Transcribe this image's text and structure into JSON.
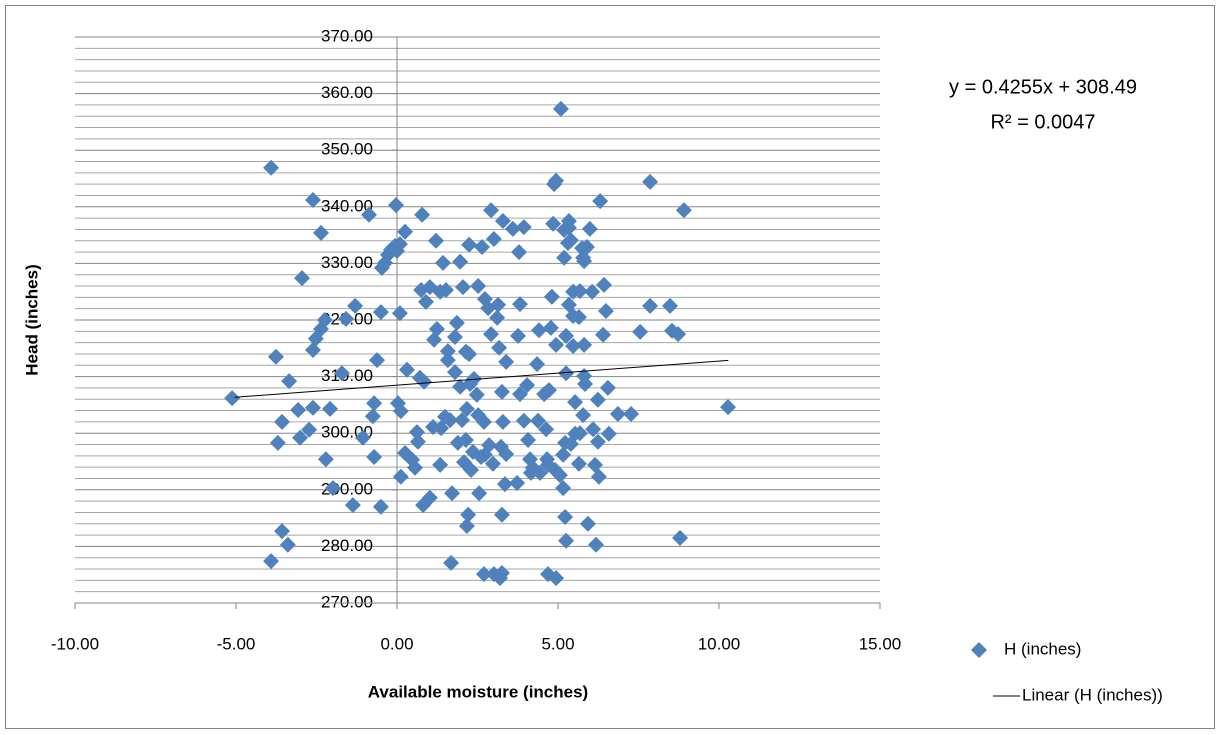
{
  "chart_data": {
    "type": "scatter",
    "xlabel": "Available moisture (inches)",
    "ylabel": "Head (inches)",
    "annotations": [
      "y = 0.4255x + 308.49",
      "R² = 0.0047"
    ],
    "xlim": [
      -10,
      15
    ],
    "xticks": [
      {
        "value": -10,
        "label": "-10.00"
      },
      {
        "value": -5,
        "label": "-5.00"
      },
      {
        "value": 0,
        "label": "0.00"
      },
      {
        "value": 5,
        "label": "5.00"
      },
      {
        "value": 10,
        "label": "10.00"
      },
      {
        "value": 15,
        "label": "15.00"
      }
    ],
    "ylim": [
      270,
      370
    ],
    "yticks": [
      {
        "value": 270,
        "label": "270.00"
      },
      {
        "value": 280,
        "label": "280.00"
      },
      {
        "value": 290,
        "label": "290.00"
      },
      {
        "value": 300,
        "label": "300.00"
      },
      {
        "value": 310,
        "label": "310.00"
      },
      {
        "value": 320,
        "label": "320.00"
      },
      {
        "value": 330,
        "label": "330.00"
      },
      {
        "value": 340,
        "label": "340.00"
      },
      {
        "value": 350,
        "label": "350.00"
      },
      {
        "value": 360,
        "label": "360.00"
      },
      {
        "value": 370,
        "label": "370.00"
      }
    ],
    "yminorticks": [
      272,
      274,
      276,
      278,
      282,
      284,
      286,
      288,
      292,
      294,
      296,
      298,
      302,
      304,
      306,
      308,
      312,
      314,
      316,
      318,
      322,
      324,
      326,
      328,
      332,
      334,
      336,
      338,
      342,
      344,
      346,
      348,
      352,
      354,
      356,
      358,
      362,
      364,
      366,
      368
    ],
    "grid": true,
    "legend": "right",
    "series": [
      {
        "name": "H (inches)",
        "color": "#4f81bd",
        "marker": "diamond",
        "x": [
          -5.12,
          -3.91,
          -2.61,
          -2.36,
          -2.95,
          -3.76,
          -3.35,
          -3.57,
          -3.7,
          -3.57,
          -3.39,
          -3.91,
          -3.07,
          -3.01,
          -2.73,
          -2.61,
          -2.61,
          -2.52,
          -2.36,
          -2.24,
          -2.08,
          -2.21,
          -1.99,
          -1.3,
          -1.71,
          -1.58,
          -1.37,
          -0.87,
          -0.62,
          -0.71,
          -0.75,
          -0.71,
          -1.06,
          -0.5,
          -0.47,
          -0.37,
          -0.28,
          -0.19,
          -0.06,
          0.0,
          0.09,
          0.25,
          -0.03,
          0.03,
          0.12,
          0.12,
          0.09,
          -0.5,
          0.31,
          0.25,
          0.47,
          0.56,
          0.62,
          0.65,
          0.71,
          0.84,
          0.78,
          0.75,
          0.9,
          1.02,
          0.81,
          1.02,
          1.12,
          1.21,
          1.15,
          1.24,
          1.34,
          1.43,
          1.52,
          1.58,
          1.37,
          1.34,
          1.49,
          1.58,
          1.65,
          1.71,
          1.8,
          1.68,
          1.8,
          1.86,
          1.96,
          1.89,
          2.02,
          2.08,
          2.14,
          2.17,
          2.24,
          2.24,
          2.05,
          1.96,
          2.27,
          2.14,
          2.3,
          2.17,
          2.39,
          2.36,
          2.48,
          2.52,
          2.61,
          2.55,
          2.52,
          2.64,
          2.21,
          2.73,
          2.7,
          2.73,
          2.92,
          2.83,
          2.7,
          2.86,
          2.98,
          3.01,
          3.17,
          3.11,
          3.23,
          3.26,
          3.01,
          2.92,
          3.14,
          3.26,
          3.29,
          3.39,
          3.39,
          3.26,
          3.35,
          3.29,
          3.73,
          3.82,
          3.76,
          3.82,
          3.79,
          3.6,
          3.94,
          4.07,
          4.16,
          4.04,
          4.13,
          4.38,
          4.41,
          3.94,
          4.22,
          4.35,
          4.69,
          4.57,
          4.63,
          4.44,
          4.72,
          4.85,
          4.94,
          4.91,
          5.16,
          4.94,
          5.22,
          5.25,
          5.19,
          5.34,
          5.4,
          5.47,
          5.47,
          5.53,
          5.65,
          5.68,
          4.66,
          4.78,
          4.81,
          5.34,
          5.19,
          5.25,
          5.06,
          4.88,
          4.94,
          5.09,
          5.16,
          5.22,
          5.25,
          5.34,
          5.4,
          5.47,
          5.53,
          5.65,
          5.68,
          5.75,
          5.78,
          5.81,
          5.84,
          5.78,
          6.06,
          6.15,
          6.24,
          6.27,
          5.81,
          5.93,
          6.09,
          6.24,
          6.18,
          6.31,
          6.4,
          6.49,
          5.81,
          6.43,
          6.58,
          6.86,
          6.55,
          7.27,
          7.55,
          7.86,
          7.86,
          8.48,
          8.54,
          8.73,
          8.91,
          8.79,
          10.28,
          5.31,
          5.9,
          5.99,
          4.69,
          3.2
        ],
        "values": [
          306.2,
          346.9,
          341.2,
          335.4,
          327.4,
          313.5,
          309.2,
          302.0,
          298.3,
          282.7,
          280.3,
          277.4,
          304.1,
          299.2,
          300.6,
          304.5,
          314.7,
          316.7,
          318.4,
          320.0,
          304.3,
          295.4,
          290.3,
          322.5,
          310.6,
          320.2,
          287.3,
          338.6,
          312.9,
          305.3,
          303.0,
          295.8,
          299.2,
          321.4,
          329.2,
          330.1,
          331.5,
          332.4,
          333.1,
          332.2,
          333.4,
          335.6,
          340.3,
          305.3,
          303.9,
          292.3,
          321.2,
          287.0,
          311.2,
          296.5,
          295.3,
          293.9,
          300.2,
          298.5,
          309.8,
          309.1,
          338.6,
          325.3,
          323.2,
          325.8,
          287.3,
          288.6,
          301.1,
          334.0,
          316.5,
          318.4,
          325.0,
          330.1,
          325.3,
          314.5,
          300.9,
          294.4,
          302.9,
          312.9,
          302.3,
          289.4,
          310.8,
          277.1,
          317.0,
          319.5,
          308.2,
          298.3,
          302.3,
          294.9,
          298.8,
          304.3,
          314.0,
          333.3,
          325.8,
          330.3,
          308.7,
          314.4,
          293.5,
          283.6,
          309.6,
          296.7,
          306.8,
          303.2,
          295.8,
          289.4,
          326.0,
          332.9,
          285.6,
          323.7,
          302.0,
          296.2,
          317.5,
          322.1,
          275.1,
          297.9,
          294.6,
          334.3,
          315.1,
          320.4,
          297.6,
          285.6,
          275.1,
          339.4,
          322.7,
          307.3,
          302.0,
          312.6,
          296.3,
          275.3,
          291.0,
          337.5,
          291.2,
          322.8,
          317.2,
          306.9,
          332.0,
          336.1,
          302.2,
          298.8,
          293.0,
          308.5,
          295.4,
          302.2,
          318.2,
          336.4,
          293.9,
          312.2,
          294.4,
          306.9,
          300.7,
          293.0,
          307.6,
          337.0,
          315.6,
          293.5,
          296.2,
          274.4,
          298.3,
          317.2,
          331.0,
          322.7,
          298.1,
          320.7,
          315.4,
          299.9,
          320.5,
          325.1,
          295.4,
          318.6,
          324.1,
          336.3,
          335.9,
          310.6,
          292.6,
          344.0,
          344.6,
          357.3,
          290.3,
          285.2,
          281.0,
          337.5,
          334.1,
          325.0,
          305.5,
          294.6,
          300.0,
          332.7,
          331.0,
          315.6,
          308.7,
          303.2,
          325.0,
          294.4,
          298.5,
          292.3,
          330.4,
          284.0,
          300.7,
          305.9,
          280.3,
          341.0,
          317.4,
          321.6,
          310.1,
          326.2,
          299.9,
          303.4,
          308.0,
          303.4,
          317.9,
          344.4,
          322.5,
          322.5,
          318.1,
          317.5,
          339.4,
          281.5,
          304.6,
          333.6,
          332.9,
          336.1,
          275.1,
          274.4
        ]
      },
      {
        "name": "Linear (H (inches))",
        "color": "#000000",
        "marker": "line",
        "x": [
          -5.04,
          10.29
        ],
        "values": [
          306.35,
          312.87
        ]
      }
    ]
  }
}
